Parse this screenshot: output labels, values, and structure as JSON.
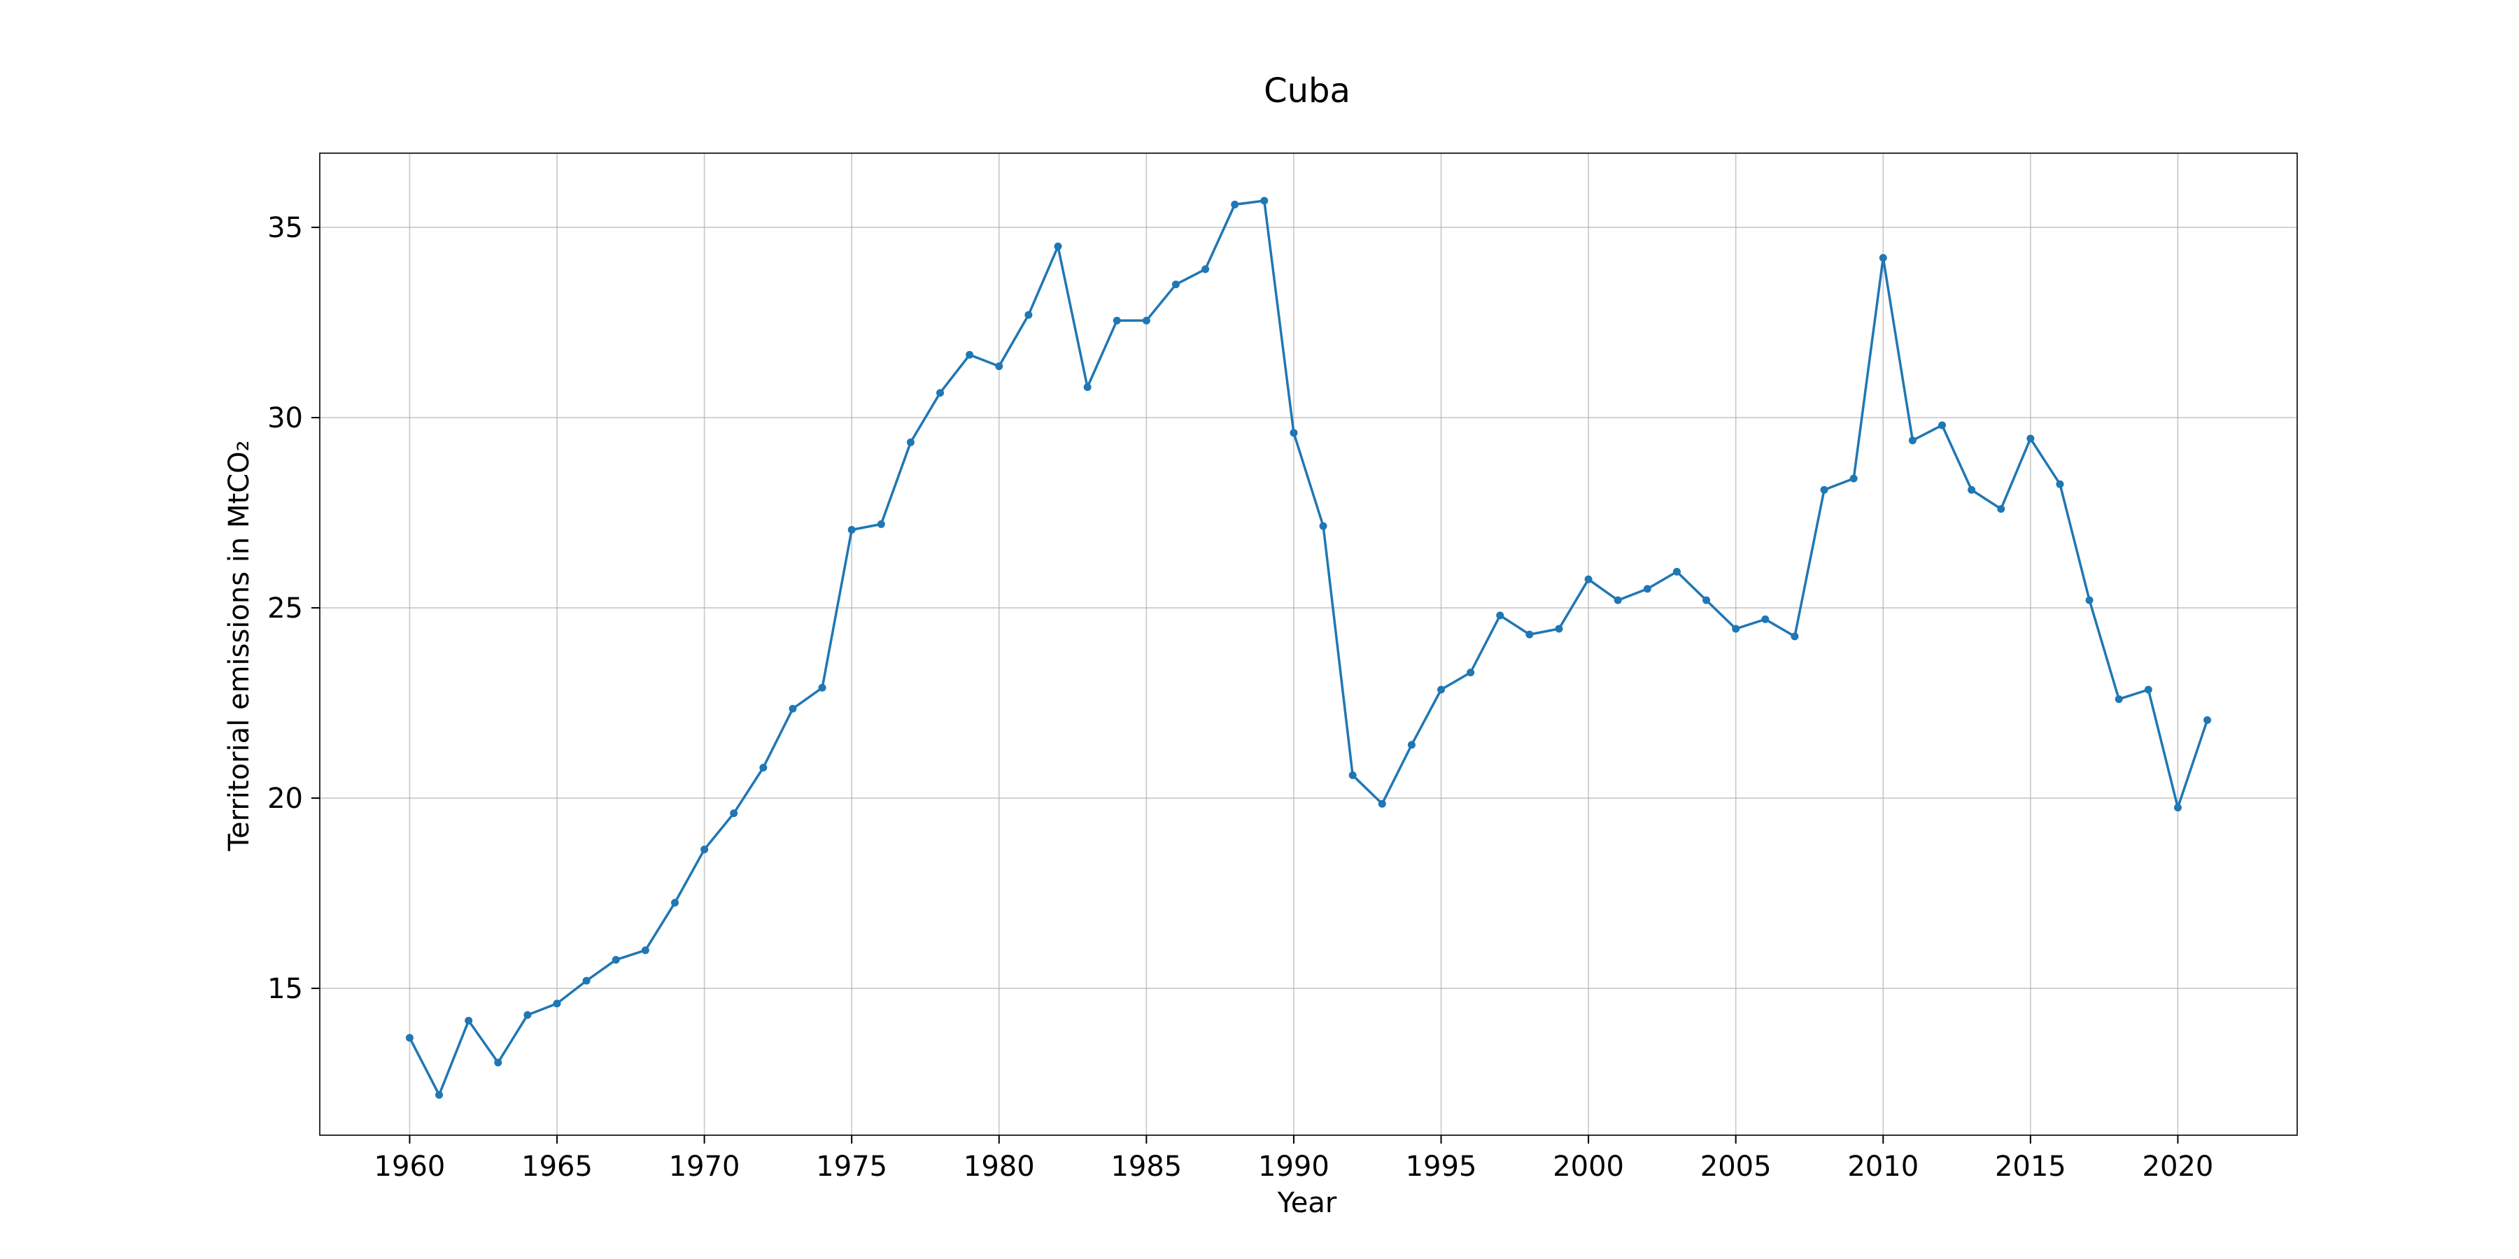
{
  "chart_data": {
    "type": "line",
    "title": "Cuba",
    "xlabel": "Year",
    "ylabel": "Territorial emissions in MtCO₂",
    "xlim": [
      1956.95,
      2024.05
    ],
    "ylim": [
      11.14,
      36.95
    ],
    "xticks": [
      1960,
      1965,
      1970,
      1975,
      1980,
      1985,
      1990,
      1995,
      2000,
      2005,
      2010,
      2015,
      2020
    ],
    "yticks": [
      15,
      20,
      25,
      30,
      35
    ],
    "grid": true,
    "colors": {
      "series": "#1f77b4"
    },
    "x": [
      1960,
      1961,
      1962,
      1963,
      1964,
      1965,
      1966,
      1967,
      1968,
      1969,
      1970,
      1971,
      1972,
      1973,
      1974,
      1975,
      1976,
      1977,
      1978,
      1979,
      1980,
      1981,
      1982,
      1983,
      1984,
      1985,
      1986,
      1987,
      1988,
      1989,
      1990,
      1991,
      1992,
      1993,
      1994,
      1995,
      1996,
      1997,
      1998,
      1999,
      2000,
      2001,
      2002,
      2003,
      2004,
      2005,
      2006,
      2007,
      2008,
      2009,
      2010,
      2011,
      2012,
      2013,
      2014,
      2015,
      2016,
      2017,
      2018,
      2019,
      2020,
      2021
    ],
    "series": [
      {
        "values": [
          13.7,
          12.2,
          14.15,
          13.05,
          14.3,
          14.6,
          15.2,
          15.75,
          16.0,
          17.25,
          18.65,
          19.6,
          20.8,
          22.35,
          22.9,
          27.05,
          27.2,
          29.35,
          30.65,
          31.65,
          31.35,
          32.7,
          34.5,
          30.8,
          32.55,
          32.55,
          33.5,
          33.9,
          35.6,
          35.7,
          29.6,
          27.15,
          20.6,
          19.85,
          21.4,
          22.85,
          23.3,
          24.8,
          24.3,
          24.45,
          25.75,
          25.2,
          25.5,
          25.95,
          25.2,
          24.45,
          24.7,
          24.25,
          28.1,
          28.4,
          34.2,
          29.4,
          29.8,
          28.1,
          27.6,
          29.45,
          28.25,
          25.2,
          22.6,
          22.85,
          19.75,
          22.05
        ]
      }
    ]
  }
}
